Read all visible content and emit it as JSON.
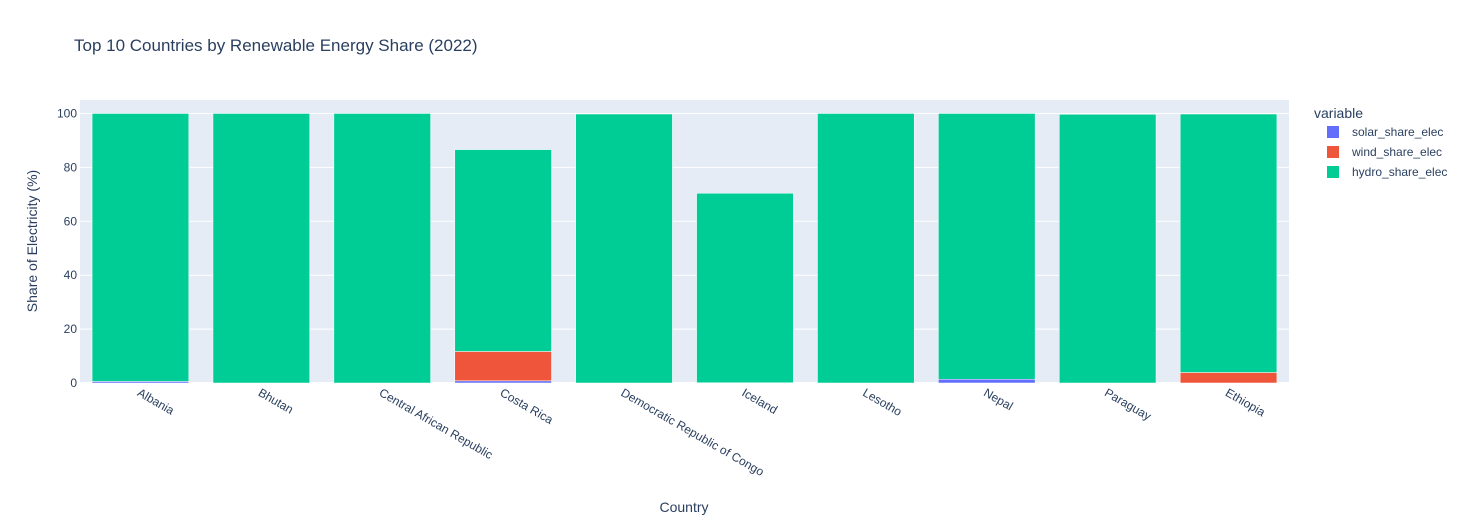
{
  "chart_data": {
    "type": "bar",
    "barmode": "stack",
    "title": "Top 10 Countries by Renewable Energy Share (2022)",
    "xlabel": "Country",
    "ylabel": "Share of Electricity (%)",
    "ylim": [
      0,
      105
    ],
    "yticks": [
      0,
      20,
      40,
      60,
      80,
      100
    ],
    "grid": true,
    "legend": {
      "title": "variable",
      "position": "right"
    },
    "categories": [
      "Albania",
      "Bhutan",
      "Central African Republic",
      "Costa Rica",
      "Democratic Republic of Congo",
      "Iceland",
      "Lesotho",
      "Nepal",
      "Paraguay",
      "Ethiopia"
    ],
    "series": [
      {
        "name": "solar_share_elec",
        "color": "#636efa",
        "values": [
          0.6,
          0,
          0,
          0.8,
          0,
          0,
          0,
          1.4,
          0,
          0
        ]
      },
      {
        "name": "wind_share_elec",
        "color": "#ef553b",
        "values": [
          0,
          0,
          0,
          10.9,
          0,
          0.1,
          0,
          0,
          0,
          3.9
        ]
      },
      {
        "name": "hydro_share_elec",
        "color": "#00cc96",
        "values": [
          99.4,
          100,
          100,
          74.9,
          99.8,
          70.3,
          100,
          98.6,
          99.7,
          95.9
        ]
      }
    ]
  }
}
